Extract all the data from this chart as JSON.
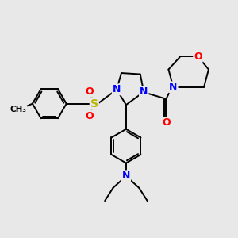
{
  "background_color": "#e8e8e8",
  "bond_color": "#000000",
  "atom_colors": {
    "N": "#0000ff",
    "O": "#ff0000",
    "S": "#b8b800",
    "C": "#000000"
  },
  "bond_width": 1.4,
  "figsize": [
    3.0,
    3.0
  ],
  "dpi": 100
}
